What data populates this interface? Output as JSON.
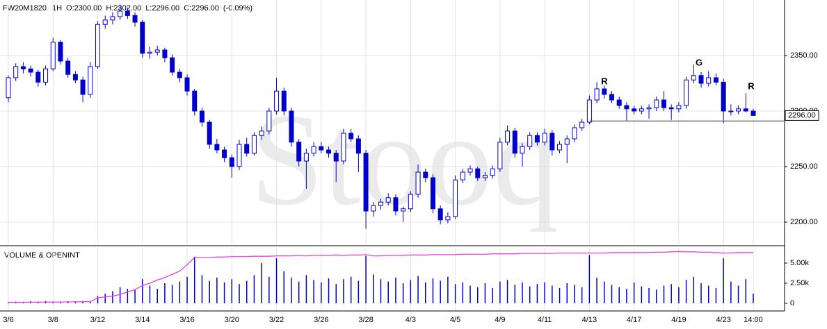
{
  "header": {
    "symbol": "FW20M1820",
    "interval": "1H",
    "open": "O:2300.00",
    "high": "H:2302.00",
    "low": "L:2296.00",
    "close": "C:2296.00",
    "change": "(-0.09%)"
  },
  "watermark": "Stooq",
  "chart_data": [
    {
      "type": "candlestick",
      "categories": [
        "3/6",
        null,
        null,
        null,
        null,
        null,
        "3/8",
        null,
        null,
        null,
        null,
        null,
        "3/12",
        null,
        null,
        null,
        null,
        null,
        "3/14",
        null,
        null,
        null,
        null,
        null,
        "3/16",
        null,
        null,
        null,
        null,
        null,
        "3/20",
        null,
        null,
        null,
        null,
        null,
        "3/22",
        null,
        null,
        null,
        null,
        null,
        "3/26",
        null,
        null,
        null,
        null,
        null,
        "3/28",
        null,
        null,
        null,
        null,
        null,
        "4/3",
        null,
        null,
        null,
        null,
        null,
        "4/5",
        null,
        null,
        null,
        null,
        null,
        "4/9",
        null,
        null,
        null,
        null,
        null,
        "4/11",
        null,
        null,
        null,
        null,
        null,
        "4/13",
        null,
        null,
        null,
        null,
        null,
        "4/17",
        null,
        null,
        null,
        null,
        null,
        "4/19",
        null,
        null,
        null,
        null,
        null,
        "4/23",
        null,
        null,
        null,
        "14:00"
      ],
      "open": [
        2312,
        2330,
        2340,
        2338,
        2335,
        2326,
        2338,
        2362,
        2345,
        2333,
        2328,
        2315,
        2340,
        2378,
        2382,
        2385,
        2390,
        2386,
        2380,
        2352,
        2353,
        2355,
        2348,
        2335,
        2330,
        2318,
        2300,
        2290,
        2270,
        2265,
        2258,
        2250,
        2270,
        2262,
        2278,
        2282,
        2300,
        2318,
        2300,
        2272,
        2255,
        2262,
        2268,
        2265,
        2262,
        2255,
        2280,
        2275,
        2262,
        2210,
        2215,
        2218,
        2222,
        2210,
        2212,
        2225,
        2245,
        2240,
        2212,
        2202,
        2205,
        2238,
        2245,
        2248,
        2240,
        2242,
        2248,
        2272,
        2282,
        2262,
        2268,
        2278,
        2272,
        2280,
        2265,
        2270,
        2275,
        2285,
        2290,
        2310,
        2320,
        2315,
        2310,
        2305,
        2302,
        2300,
        2302,
        2303,
        2310,
        2303,
        2302,
        2305,
        2328,
        2332,
        2325,
        2330,
        2326,
        2300,
        2300,
        2302,
        2300
      ],
      "high": [
        2332,
        2343,
        2344,
        2341,
        2337,
        2341,
        2366,
        2364,
        2348,
        2336,
        2331,
        2344,
        2381,
        2386,
        2389,
        2396,
        2393,
        2389,
        2382,
        2358,
        2359,
        2357,
        2351,
        2338,
        2333,
        2320,
        2303,
        2292,
        2275,
        2268,
        2261,
        2274,
        2276,
        2281,
        2286,
        2303,
        2330,
        2321,
        2303,
        2275,
        2266,
        2272,
        2272,
        2268,
        2265,
        2284,
        2284,
        2278,
        2265,
        2218,
        2221,
        2226,
        2225,
        2214,
        2228,
        2252,
        2248,
        2243,
        2215,
        2209,
        2242,
        2248,
        2251,
        2250,
        2245,
        2251,
        2276,
        2287,
        2285,
        2271,
        2281,
        2281,
        2284,
        2283,
        2273,
        2278,
        2288,
        2293,
        2314,
        2326,
        2323,
        2318,
        2313,
        2308,
        2305,
        2305,
        2306,
        2313,
        2318,
        2306,
        2308,
        2331,
        2342,
        2335,
        2336,
        2334,
        2329,
        2306,
        2305,
        2316,
        2302
      ],
      "low": [
        2308,
        2327,
        2334,
        2331,
        2322,
        2323,
        2336,
        2342,
        2330,
        2325,
        2308,
        2312,
        2338,
        2374,
        2378,
        2382,
        2383,
        2376,
        2348,
        2347,
        2350,
        2344,
        2332,
        2326,
        2314,
        2296,
        2286,
        2266,
        2262,
        2254,
        2240,
        2247,
        2259,
        2260,
        2274,
        2279,
        2297,
        2296,
        2268,
        2250,
        2230,
        2259,
        2262,
        2258,
        2236,
        2252,
        2272,
        2245,
        2194,
        2205,
        2211,
        2215,
        2206,
        2200,
        2209,
        2222,
        2236,
        2208,
        2198,
        2199,
        2203,
        2235,
        2242,
        2237,
        2237,
        2239,
        2245,
        2269,
        2258,
        2250,
        2265,
        2269,
        2269,
        2260,
        2262,
        2253,
        2272,
        2282,
        2288,
        2307,
        2311,
        2307,
        2302,
        2291,
        2297,
        2297,
        2293,
        2300,
        2300,
        2292,
        2299,
        2302,
        2325,
        2321,
        2322,
        2323,
        2289,
        2296,
        2297,
        2299,
        2296
      ],
      "close": [
        2330,
        2340,
        2338,
        2335,
        2326,
        2338,
        2362,
        2345,
        2333,
        2328,
        2315,
        2340,
        2378,
        2382,
        2385,
        2390,
        2386,
        2380,
        2352,
        2353,
        2355,
        2348,
        2335,
        2330,
        2318,
        2300,
        2290,
        2270,
        2265,
        2258,
        2250,
        2270,
        2262,
        2278,
        2282,
        2300,
        2318,
        2300,
        2272,
        2255,
        2262,
        2268,
        2265,
        2262,
        2255,
        2280,
        2275,
        2262,
        2210,
        2215,
        2218,
        2222,
        2210,
        2212,
        2225,
        2245,
        2240,
        2212,
        2202,
        2205,
        2238,
        2245,
        2248,
        2240,
        2242,
        2248,
        2272,
        2282,
        2262,
        2268,
        2278,
        2272,
        2280,
        2265,
        2270,
        2275,
        2285,
        2290,
        2310,
        2320,
        2315,
        2310,
        2305,
        2302,
        2300,
        2302,
        2303,
        2310,
        2303,
        2302,
        2305,
        2328,
        2332,
        2325,
        2330,
        2326,
        2300,
        2300,
        2302,
        2300,
        2296
      ],
      "color": "#0000cc",
      "ylim": [
        2180,
        2400
      ],
      "yticks": [
        {
          "value": 2200,
          "label": "2200.00"
        },
        {
          "value": 2250,
          "label": "2250.00"
        },
        {
          "value": 2300,
          "label": "2300.00"
        },
        {
          "value": 2350,
          "label": "2350.00"
        }
      ],
      "grid": true,
      "last_price": {
        "value": 2296,
        "label": "2296.00"
      },
      "support_level": 2291,
      "annotations": [
        "R",
        "G",
        "R"
      ]
    },
    {
      "type": "volume",
      "title": "VOLUME & OPENINT",
      "series": [
        {
          "color": "#0000cc",
          "values": [
            150,
            200,
            180,
            250,
            200,
            300,
            220,
            180,
            260,
            240,
            300,
            280,
            900,
            1200,
            1500,
            2000,
            1800,
            1700,
            3000,
            2200,
            1800,
            2500,
            2300,
            2700,
            3300,
            5800,
            3500,
            2800,
            3200,
            2600,
            3000,
            2400,
            2800,
            3500,
            5000,
            3300,
            5600,
            4000,
            3200,
            2700,
            3500,
            2900,
            2600,
            3100,
            2400,
            3000,
            3300,
            2800,
            5900,
            3600,
            3000,
            2700,
            3200,
            2500,
            2900,
            3400,
            2600,
            3100,
            2800,
            3300,
            2400,
            2600,
            2200,
            2000,
            2500,
            1900,
            2700,
            2900,
            2300,
            2600,
            2100,
            2400,
            2600,
            2200,
            1900,
            2500,
            2300,
            2000,
            6000,
            3200,
            2700,
            2300,
            2000,
            1800,
            2600,
            2100,
            1900,
            1700,
            2200,
            2400,
            2000,
            2900,
            3300,
            2500,
            2200,
            1900,
            5600,
            2700,
            2200,
            3000,
            1200
          ]
        },
        {
          "color": "#e83ee8",
          "values": [
            100,
            110,
            120,
            130,
            140,
            150,
            150,
            160,
            170,
            180,
            200,
            210,
            700,
            800,
            900,
            1100,
            1400,
            1700,
            2200,
            2500,
            2900,
            3200,
            3600,
            4000,
            4800,
            5700,
            5700,
            5700,
            5750,
            5750,
            5800,
            5800,
            5800,
            5850,
            5850,
            5850,
            5900,
            5900,
            5900,
            5950,
            5900,
            5950,
            5950,
            5950,
            6000,
            5950,
            6000,
            6000,
            6050,
            5900,
            5900,
            5950,
            5950,
            5950,
            6000,
            6000,
            6000,
            6050,
            6050,
            6050,
            6050,
            6100,
            6100,
            6100,
            6100,
            6150,
            6150,
            6150,
            6150,
            6200,
            6200,
            6200,
            6200,
            6200,
            6250,
            6250,
            6250,
            6250,
            6250,
            6250,
            6250,
            6300,
            6300,
            6300,
            6300,
            6300,
            6300,
            6350,
            6350,
            6400,
            6450,
            6400,
            6400,
            6350,
            6350,
            6300,
            6250,
            6250,
            6300,
            6300,
            6300
          ]
        }
      ],
      "ylim": [
        -950,
        6900
      ],
      "yticks": [
        0,
        {
          "value": 2500,
          "label": "2.50k"
        },
        {
          "value": 5000,
          "label": "5.00k"
        }
      ]
    }
  ]
}
